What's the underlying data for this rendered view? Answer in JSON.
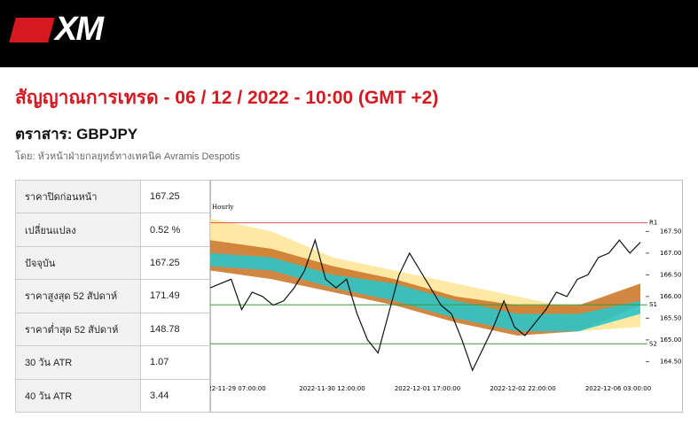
{
  "header": {
    "logo": "XM"
  },
  "title": "สัญญาณการเทรด - 06 / 12 / 2022 - 10:00 (GMT +2)",
  "instrument": "ตราสาร: GBPJPY",
  "author": "โดย: หัวหน้าฝ่ายกลยุทธ์ทางเทคนิค Avramis Despotis",
  "table": {
    "rows": [
      [
        "ราคาปิดก่อนหน้า",
        "167.25"
      ],
      [
        "เปลี่ยนแปลง",
        "0.52 %"
      ],
      [
        "ปัจจุบัน",
        "167.25"
      ],
      [
        "ราคาสูงสุด 52 สัปดาห์",
        "171.49"
      ],
      [
        "ราคาต่ำสุด 52 สัปดาห์",
        "148.78"
      ],
      [
        "30 วัน ATR",
        "1.07"
      ],
      [
        "40 วัน ATR",
        "3.44"
      ]
    ]
  },
  "chart": {
    "timeframe": "Hourly",
    "ylim": [
      164.1,
      168.1
    ],
    "yticks": [
      {
        "value": 164.5,
        "label": "164.50"
      },
      {
        "value": 165,
        "label": "165.00"
      },
      {
        "value": 165.5,
        "label": "165.50"
      },
      {
        "value": 166,
        "label": "166.00"
      },
      {
        "value": 166.5,
        "label": "166.50"
      },
      {
        "value": 167,
        "label": "167.00"
      },
      {
        "value": 167.5,
        "label": "167.50"
      }
    ],
    "x_labels": [
      "22-11-29 07:00:00",
      "2022-11-30 12:00:00",
      "2022-12-01 17:00:00",
      "2022-12-02 22:00:00",
      "2022-12-06 03:00:00"
    ],
    "levels": [
      {
        "name": "R1",
        "value": 167.7,
        "color": "#e05050"
      },
      {
        "name": "S1",
        "value": 165.81,
        "color": "#3a9a3a"
      },
      {
        "name": "S2",
        "value": 164.91,
        "color": "#3a9a3a"
      }
    ],
    "bands": [
      {
        "color": "#fde79a",
        "upper": [
          167.8,
          167.5,
          166.9,
          166.6,
          166.3,
          166.0,
          165.7,
          165.7
        ],
        "lower": [
          167.3,
          166.9,
          166.4,
          166.1,
          165.7,
          165.3,
          165.2,
          165.3
        ]
      },
      {
        "color": "#cc7a2e",
        "upper": [
          167.3,
          167.1,
          166.7,
          166.4,
          166.0,
          165.8,
          165.8,
          166.3
        ],
        "lower": [
          166.6,
          166.4,
          166.1,
          165.8,
          165.4,
          165.1,
          165.2,
          165.8
        ]
      },
      {
        "color": "#2ec4c8",
        "upper": [
          167.0,
          166.9,
          166.5,
          166.3,
          165.9,
          165.6,
          165.6,
          165.9
        ],
        "lower": [
          166.7,
          166.6,
          166.2,
          165.9,
          165.5,
          165.2,
          165.2,
          165.6
        ]
      }
    ],
    "price": [
      166.2,
      166.3,
      166.4,
      165.7,
      166.1,
      166.0,
      165.8,
      165.9,
      166.2,
      166.6,
      167.3,
      166.4,
      166.2,
      166.4,
      165.6,
      165.0,
      164.7,
      165.6,
      166.5,
      167.0,
      166.6,
      166.2,
      165.8,
      165.6,
      165.0,
      164.3,
      164.8,
      165.3,
      165.9,
      165.3,
      165.1,
      165.4,
      165.7,
      166.1,
      166.0,
      166.4,
      166.5,
      166.9,
      167.0,
      167.3,
      167.0,
      167.25
    ]
  }
}
